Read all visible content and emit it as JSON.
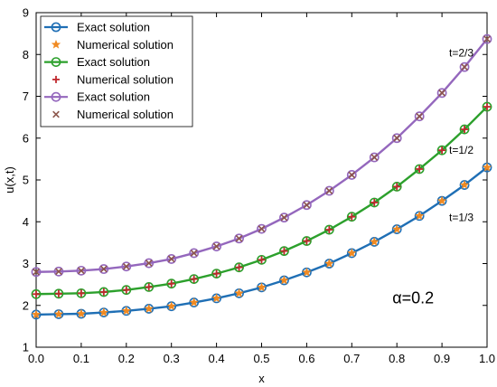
{
  "chart_data": {
    "type": "line",
    "xlabel": "x",
    "ylabel": "u(x,t)",
    "xlim": [
      0,
      1
    ],
    "ylim": [
      1,
      9
    ],
    "xticks": [
      "0.0",
      "0.1",
      "0.2",
      "0.3",
      "0.4",
      "0.5",
      "0.6",
      "0.7",
      "0.8",
      "0.9",
      "1.0"
    ],
    "yticks": [
      "1",
      "2",
      "3",
      "4",
      "5",
      "6",
      "7",
      "8",
      "9"
    ],
    "grid": false,
    "legend_position": "top-left",
    "x": [
      0,
      0.05,
      0.1,
      0.15,
      0.2,
      0.25,
      0.3,
      0.35,
      0.4,
      0.45,
      0.5,
      0.55,
      0.6,
      0.65,
      0.7,
      0.75,
      0.8,
      0.85,
      0.9,
      0.95,
      1.0
    ],
    "series": [
      {
        "name": "Exact solution",
        "kind": "exact",
        "marker": "circle",
        "color": "#1f6fb5",
        "curve_label": "t=1/3",
        "values": [
          1.78,
          1.79,
          1.8,
          1.83,
          1.87,
          1.92,
          1.98,
          2.07,
          2.17,
          2.29,
          2.43,
          2.6,
          2.79,
          3.0,
          3.25,
          3.52,
          3.82,
          4.14,
          4.5,
          4.88,
          5.3
        ]
      },
      {
        "name": "Numerical solution",
        "kind": "numerical",
        "marker": "star",
        "color": "#f08a22",
        "values": [
          1.78,
          1.79,
          1.8,
          1.83,
          1.87,
          1.92,
          1.98,
          2.07,
          2.17,
          2.29,
          2.43,
          2.6,
          2.79,
          3.0,
          3.25,
          3.52,
          3.82,
          4.14,
          4.5,
          4.88,
          5.3
        ]
      },
      {
        "name": "Exact solution",
        "kind": "exact",
        "marker": "circle",
        "color": "#2ca02c",
        "curve_label": "t=1/2",
        "values": [
          2.27,
          2.28,
          2.29,
          2.32,
          2.37,
          2.44,
          2.52,
          2.63,
          2.76,
          2.91,
          3.09,
          3.3,
          3.54,
          3.81,
          4.12,
          4.46,
          4.84,
          5.26,
          5.71,
          6.21,
          6.75
        ]
      },
      {
        "name": "Numerical solution",
        "kind": "numerical",
        "marker": "plus",
        "color": "#c0282e",
        "values": [
          2.27,
          2.28,
          2.29,
          2.32,
          2.37,
          2.44,
          2.52,
          2.63,
          2.76,
          2.91,
          3.09,
          3.3,
          3.54,
          3.81,
          4.12,
          4.46,
          4.84,
          5.26,
          5.71,
          6.21,
          6.75
        ]
      },
      {
        "name": "Exact solution",
        "kind": "exact",
        "marker": "circle",
        "color": "#9467bd",
        "curve_label": "t=2/3",
        "values": [
          2.8,
          2.81,
          2.83,
          2.87,
          2.93,
          3.01,
          3.11,
          3.25,
          3.41,
          3.6,
          3.83,
          4.1,
          4.4,
          4.74,
          5.12,
          5.54,
          6.0,
          6.52,
          7.08,
          7.7,
          8.37
        ]
      },
      {
        "name": "Numerical solution",
        "kind": "numerical",
        "marker": "x",
        "color": "#8c564b",
        "values": [
          2.8,
          2.81,
          2.83,
          2.87,
          2.93,
          3.01,
          3.11,
          3.25,
          3.41,
          3.6,
          3.83,
          4.1,
          4.4,
          4.74,
          5.12,
          5.54,
          6.0,
          6.52,
          7.08,
          7.7,
          8.37
        ]
      }
    ],
    "annotations": [
      {
        "text": "t=2/3",
        "x": 0.97,
        "y": 7.95
      },
      {
        "text": "t=1/2",
        "x": 0.97,
        "y": 5.63
      },
      {
        "text": "t=1/3",
        "x": 0.97,
        "y": 4.02
      },
      {
        "text": "α=0.2",
        "x": 0.79,
        "y": 2.05
      }
    ]
  }
}
